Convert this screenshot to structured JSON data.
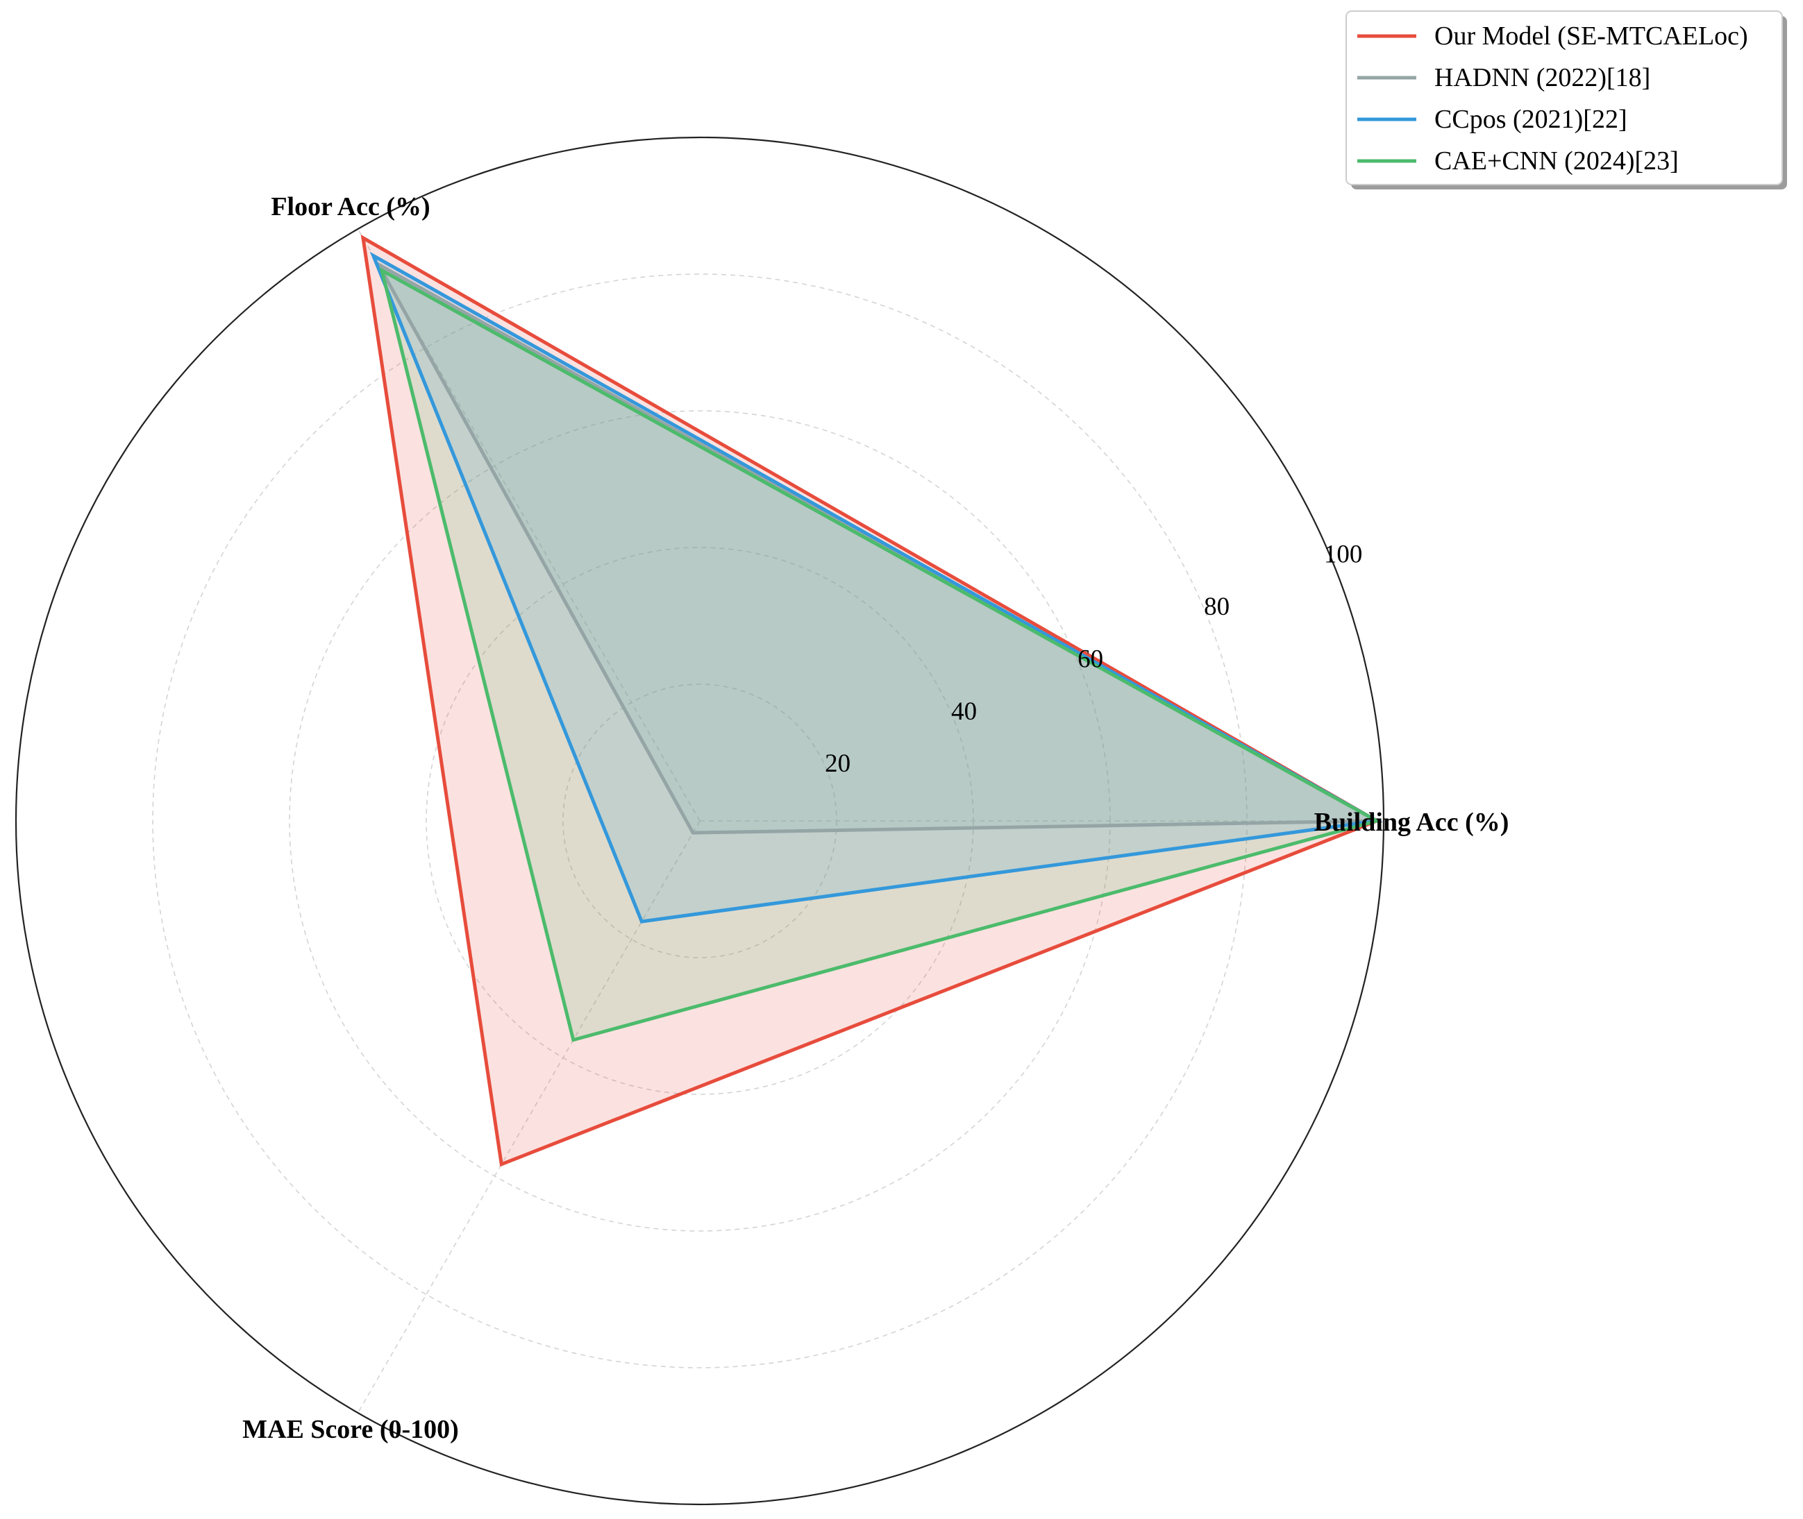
{
  "chart_data": {
    "type": "radar",
    "axes": [
      "Building Acc (%)",
      "Floor Acc (%)",
      "MAE Score (0-100)"
    ],
    "rlim": [
      0,
      100
    ],
    "rticks": [
      20,
      40,
      60,
      80,
      100
    ],
    "rtick_labels": [
      "20",
      "40",
      "60",
      "80",
      "100"
    ],
    "grid": true,
    "legend_position": "top-right",
    "series": [
      {
        "name": "Our Model (SE-MTCAELoc)",
        "color": "#e74c3c",
        "values": [
          99.0,
          98.5,
          58.0
        ]
      },
      {
        "name": "HADNN (2022)[18]",
        "color": "#95a5a6",
        "values": [
          99.0,
          94.0,
          2.0
        ]
      },
      {
        "name": "CCpos (2021)[22]",
        "color": "#3498db",
        "values": [
          99.0,
          95.5,
          17.0
        ]
      },
      {
        "name": "CAE+CNN (2024)[23]",
        "color": "#4cbb6c",
        "values": [
          99.0,
          93.0,
          37.0
        ]
      }
    ]
  }
}
